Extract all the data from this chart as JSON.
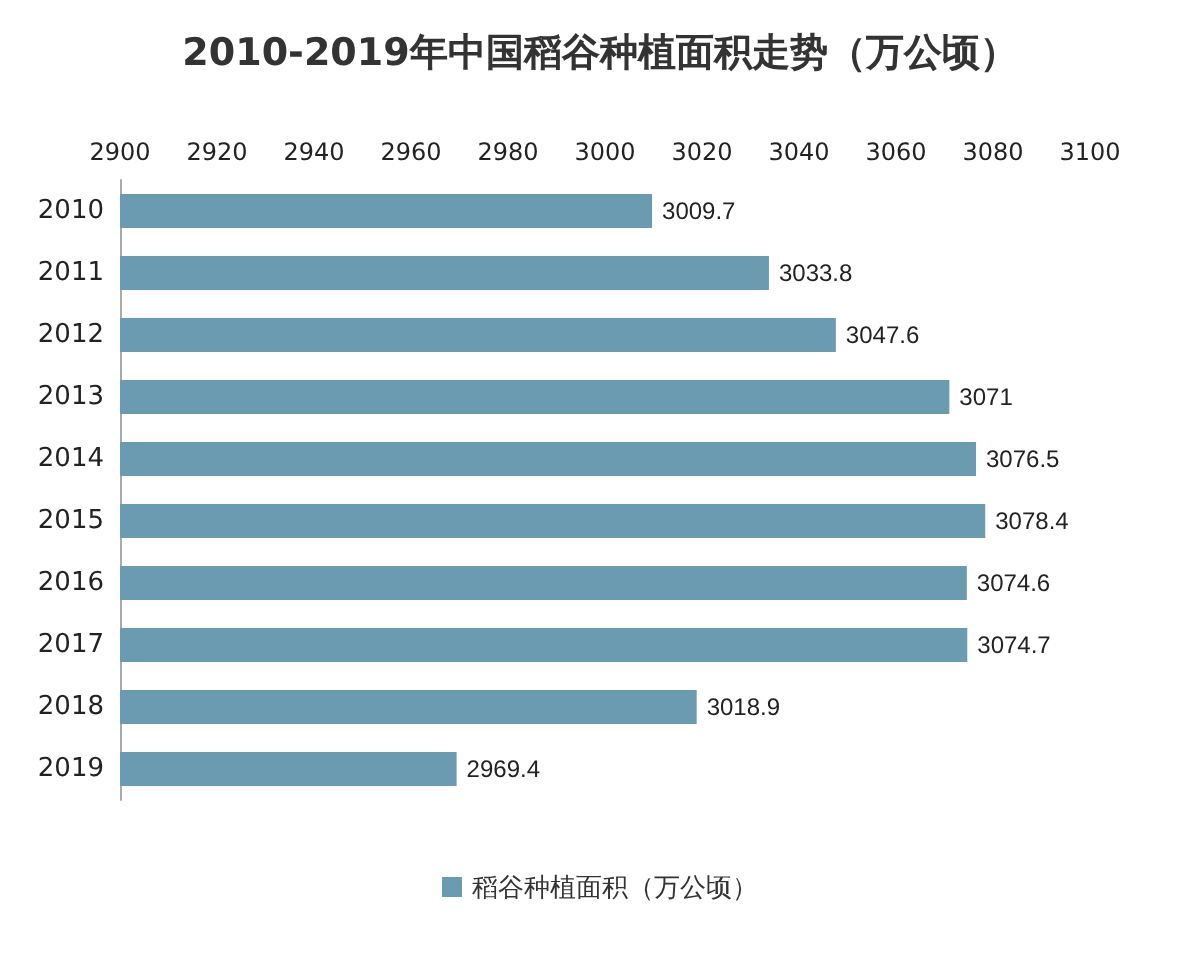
{
  "chart_data": {
    "type": "bar",
    "orientation": "horizontal",
    "title": "2010-2019年中国稻谷种植面积走势（万公顷）",
    "categories": [
      "2010",
      "2011",
      "2012",
      "2013",
      "2014",
      "2015",
      "2016",
      "2017",
      "2018",
      "2019"
    ],
    "series": [
      {
        "name": "稻谷种植面积（万公顷）",
        "color": "#6a9bb0",
        "values": [
          3009.7,
          3033.8,
          3047.6,
          3071,
          3076.5,
          3078.4,
          3074.6,
          3074.7,
          3018.9,
          2969.4
        ]
      }
    ],
    "xlim": [
      2900,
      3100
    ],
    "xticks": [
      2900,
      2920,
      2940,
      2960,
      2980,
      3000,
      3020,
      3040,
      3060,
      3080,
      3100
    ],
    "data_labels": true,
    "legend": "bottom",
    "grid": false
  }
}
